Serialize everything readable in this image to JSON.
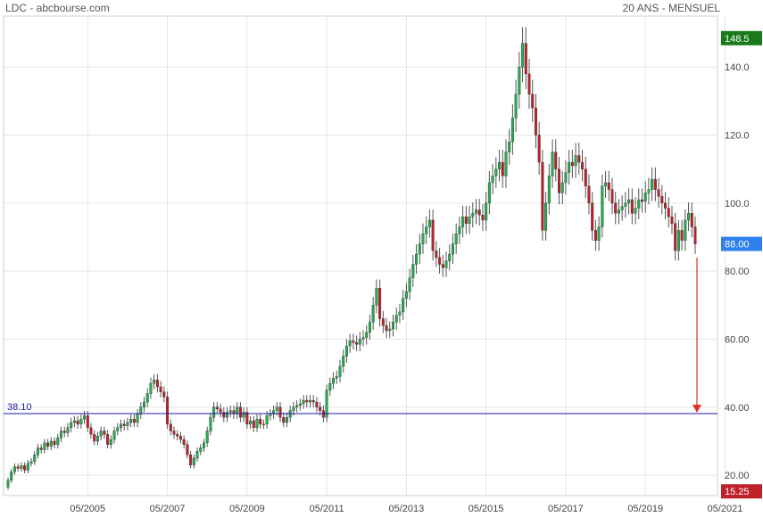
{
  "header": {
    "title": "LDC - abcbourse.com",
    "period": "20 ANS - MENSUEL"
  },
  "colors": {
    "up": "#22b14c",
    "down": "#c0202a",
    "high_badge": "#1a7a1a",
    "last_badge": "#2f80ed",
    "low_badge": "#c0202a",
    "support_line": "#1a1aa0",
    "arrow": "#e03030"
  },
  "chart_data": {
    "type": "candlestick",
    "x_ticks": [
      "05/2005",
      "05/2007",
      "05/2009",
      "05/2011",
      "05/2013",
      "05/2015",
      "05/2017",
      "05/2019",
      "05/2021"
    ],
    "y_ticks": [
      "20.00",
      "40.00",
      "60.00",
      "80.00",
      "100.0",
      "120.0",
      "140.0"
    ],
    "ylim": [
      14,
      155
    ],
    "high_label": "148.5",
    "last_label": "88.00",
    "low_label": "15.25",
    "support": {
      "value": 38.1,
      "label": "38.10"
    },
    "start": "05/2003",
    "close_series": [
      18.5,
      21.0,
      22.5,
      22.0,
      22.8,
      21.5,
      23.5,
      24.0,
      26.0,
      28.0,
      27.5,
      29.5,
      28.5,
      30.0,
      29.0,
      31.0,
      33.0,
      32.5,
      34.0,
      35.5,
      36.0,
      35.0,
      36.5,
      37.5,
      34.0,
      32.0,
      30.0,
      31.5,
      33.0,
      32.0,
      29.0,
      30.5,
      33.0,
      34.0,
      35.0,
      34.5,
      35.5,
      36.5,
      35.5,
      38.0,
      40.0,
      41.5,
      44.0,
      47.0,
      48.0,
      46.0,
      44.5,
      43.0,
      35.0,
      33.0,
      32.0,
      31.5,
      30.5,
      29.0,
      26.0,
      23.0,
      25.0,
      27.0,
      28.0,
      29.5,
      33.0,
      37.0,
      40.0,
      39.5,
      38.5,
      37.0,
      38.5,
      39.0,
      38.0,
      40.0,
      37.0,
      38.5,
      35.0,
      36.0,
      34.0,
      36.5,
      35.0,
      35.0,
      37.5,
      38.0,
      39.0,
      40.0,
      37.0,
      35.5,
      37.0,
      39.0,
      40.0,
      40.5,
      41.0,
      42.0,
      41.5,
      42.0,
      41.5,
      40.0,
      39.0,
      37.0,
      45.0,
      47.0,
      48.5,
      49.0,
      52.0,
      55.0,
      58.0,
      59.5,
      59.0,
      58.5,
      60.0,
      60.5,
      62.0,
      65.0,
      70.0,
      75.0,
      66.0,
      64.0,
      62.5,
      63.0,
      65.0,
      67.0,
      68.0,
      72.0,
      74.0,
      78.0,
      82.0,
      85.0,
      88.0,
      91.0,
      93.0,
      95.0,
      86.0,
      84.0,
      82.0,
      81.0,
      83.0,
      85.0,
      88.0,
      91.0,
      93.0,
      96.0,
      94.0,
      96.0,
      97.0,
      98.0,
      96.5,
      95.0,
      100.0,
      106.0,
      108.0,
      110.0,
      112.0,
      108.0,
      115.0,
      118.0,
      125.0,
      132.0,
      140.0,
      147.0,
      138.0,
      132.0,
      128.0,
      120.0,
      112.0,
      92.0,
      100.0,
      108.0,
      115.0,
      110.0,
      103.0,
      106.0,
      109.0,
      112.0,
      111.0,
      114.0,
      112.0,
      110.0,
      105.0,
      100.0,
      92.0,
      89.0,
      93.0,
      105.0,
      106.0,
      104.0,
      100.0,
      97.0,
      98.0,
      99.0,
      100.0,
      101.0,
      97.0,
      98.5,
      101.0,
      100.5,
      103.0,
      104.0,
      107.0,
      104.0,
      102.0,
      100.0,
      98.5,
      96.0,
      94.0,
      86.0,
      92.0,
      89.0,
      95.0,
      97.0,
      93.0,
      88.0
    ]
  }
}
